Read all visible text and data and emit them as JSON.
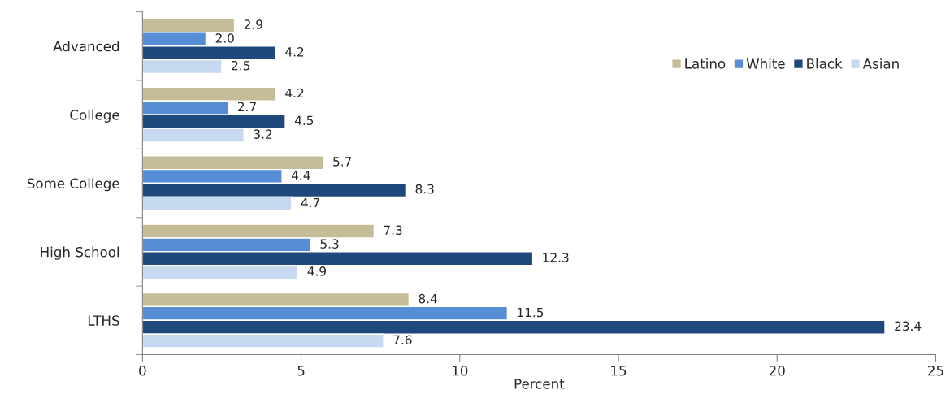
{
  "chart_data": {
    "type": "bar",
    "orientation": "horizontal",
    "xlabel": "Percent",
    "categories": [
      "Advanced",
      "College",
      "Some College",
      "High School",
      "LTHS"
    ],
    "series": [
      {
        "name": "Latino",
        "color": "#c4bd97",
        "values": [
          2.9,
          4.2,
          5.7,
          7.3,
          8.4
        ],
        "value_labels": [
          "2.9",
          "4.2",
          "5.7",
          "7.3",
          "8.4"
        ]
      },
      {
        "name": "White",
        "color": "#558ed5",
        "values": [
          2.0,
          2.7,
          4.4,
          5.3,
          11.5
        ],
        "value_labels": [
          "2.0",
          "2.7",
          "4.4",
          "5.3",
          "11.5"
        ]
      },
      {
        "name": "Black",
        "color": "#1f497d",
        "values": [
          4.2,
          4.5,
          8.3,
          12.3,
          23.4
        ],
        "value_labels": [
          "4.2",
          "4.5",
          "8.3",
          "12.3",
          "23.4"
        ]
      },
      {
        "name": "Asian",
        "color": "#c6d9f1",
        "values": [
          2.5,
          3.2,
          4.7,
          4.9,
          7.6
        ],
        "value_labels": [
          "2.5",
          "3.2",
          "4.7",
          "4.9",
          "7.6"
        ]
      }
    ],
    "xlim": [
      0,
      25
    ],
    "xticks": [
      0,
      5,
      10,
      15,
      20,
      25
    ],
    "legend": "top right",
    "grid": false
  }
}
